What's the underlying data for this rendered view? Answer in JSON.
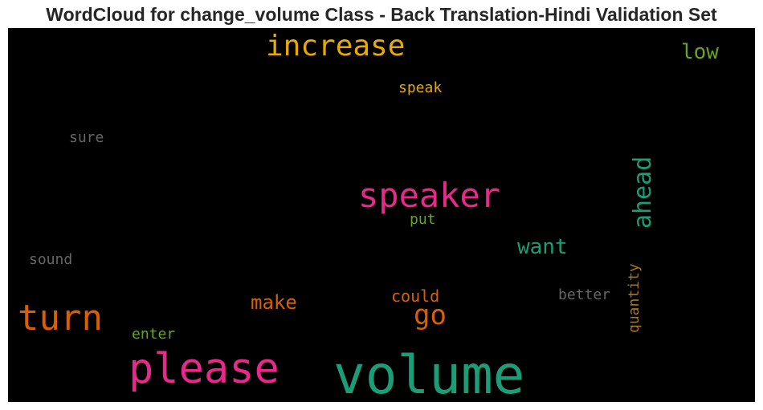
{
  "title": "WordCloud for change_volume Class - Back Translation-Hindi Validation Set",
  "chart_data": {
    "type": "wordcloud",
    "background": "#000000",
    "words": [
      {
        "text": "volume",
        "color": "#1b9e77"
      },
      {
        "text": "please",
        "color": "#e7298a"
      },
      {
        "text": "turn",
        "color": "#d95f02"
      },
      {
        "text": "speaker",
        "color": "#e7298a"
      },
      {
        "text": "increase",
        "color": "#e6ab02"
      },
      {
        "text": "ahead",
        "color": "#1b9e77"
      },
      {
        "text": "go",
        "color": "#d95f02"
      },
      {
        "text": "want",
        "color": "#1b9e77"
      },
      {
        "text": "make",
        "color": "#d95f02"
      },
      {
        "text": "low",
        "color": "#66a61e"
      },
      {
        "text": "quantity",
        "color": "#a6761d"
      },
      {
        "text": "better",
        "color": "#666666"
      },
      {
        "text": "could",
        "color": "#d95f02"
      },
      {
        "text": "sound",
        "color": "#666666"
      },
      {
        "text": "sure",
        "color": "#666666"
      },
      {
        "text": "speak",
        "color": "#e6ab02"
      },
      {
        "text": "enter",
        "color": "#66a61e"
      },
      {
        "text": "put",
        "color": "#66a61e"
      }
    ]
  }
}
